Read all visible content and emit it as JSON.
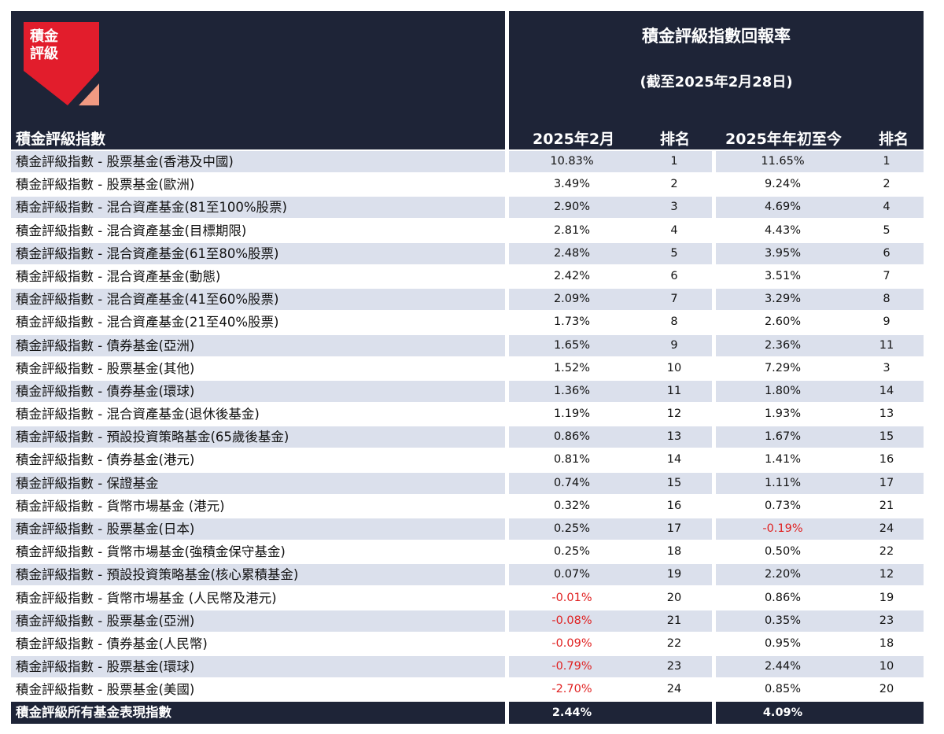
{
  "logo": {
    "line1": "積金",
    "line2": "評級",
    "red": "#e21d2c",
    "salmon": "#f19a82"
  },
  "header": {
    "title": "積金評級指數回報率",
    "subtitle": "(截至2025年2月28日)",
    "col_index": "積金評級指數",
    "col_feb": "2025年2月",
    "col_feb_rank": "排名",
    "col_ytd": "2025年年初至今",
    "col_ytd_rank": "排名"
  },
  "colors": {
    "navy": "#1e2437",
    "shade": "#dbe0ec",
    "negative": "#e02020"
  },
  "rows": [
    {
      "name": "積金評級指數 - 股票基金(香港及中國)",
      "feb": "10.83%",
      "feb_rank": "1",
      "ytd": "11.65%",
      "ytd_rank": "1"
    },
    {
      "name": "積金評級指數 - 股票基金(歐洲)",
      "feb": "3.49%",
      "feb_rank": "2",
      "ytd": "9.24%",
      "ytd_rank": "2"
    },
    {
      "name": "積金評級指數 - 混合資產基金(81至100%股票)",
      "feb": "2.90%",
      "feb_rank": "3",
      "ytd": "4.69%",
      "ytd_rank": "4"
    },
    {
      "name": "積金評級指數 - 混合資產基金(目標期限)",
      "feb": "2.81%",
      "feb_rank": "4",
      "ytd": "4.43%",
      "ytd_rank": "5"
    },
    {
      "name": "積金評級指數 - 混合資產基金(61至80%股票)",
      "feb": "2.48%",
      "feb_rank": "5",
      "ytd": "3.95%",
      "ytd_rank": "6"
    },
    {
      "name": "積金評級指數 - 混合資產基金(動態)",
      "feb": "2.42%",
      "feb_rank": "6",
      "ytd": "3.51%",
      "ytd_rank": "7"
    },
    {
      "name": "積金評級指數 - 混合資產基金(41至60%股票)",
      "feb": "2.09%",
      "feb_rank": "7",
      "ytd": "3.29%",
      "ytd_rank": "8"
    },
    {
      "name": "積金評級指數 - 混合資產基金(21至40%股票)",
      "feb": "1.73%",
      "feb_rank": "8",
      "ytd": "2.60%",
      "ytd_rank": "9"
    },
    {
      "name": "積金評級指數 - 債券基金(亞洲)",
      "feb": "1.65%",
      "feb_rank": "9",
      "ytd": "2.36%",
      "ytd_rank": "11"
    },
    {
      "name": "積金評級指數 - 股票基金(其他)",
      "feb": "1.52%",
      "feb_rank": "10",
      "ytd": "7.29%",
      "ytd_rank": "3"
    },
    {
      "name": "積金評級指數 - 債券基金(環球)",
      "feb": "1.36%",
      "feb_rank": "11",
      "ytd": "1.80%",
      "ytd_rank": "14"
    },
    {
      "name": "積金評級指數 - 混合資產基金(退休後基金)",
      "feb": "1.19%",
      "feb_rank": "12",
      "ytd": "1.93%",
      "ytd_rank": "13"
    },
    {
      "name": "積金評級指數 - 預設投資策略基金(65歲後基金)",
      "feb": "0.86%",
      "feb_rank": "13",
      "ytd": "1.67%",
      "ytd_rank": "15"
    },
    {
      "name": "積金評級指數 - 債券基金(港元)",
      "feb": "0.81%",
      "feb_rank": "14",
      "ytd": "1.41%",
      "ytd_rank": "16"
    },
    {
      "name": "積金評級指數 - 保證基金",
      "feb": "0.74%",
      "feb_rank": "15",
      "ytd": "1.11%",
      "ytd_rank": "17"
    },
    {
      "name": "積金評級指數 - 貨幣市場基金 (港元)",
      "feb": "0.32%",
      "feb_rank": "16",
      "ytd": "0.73%",
      "ytd_rank": "21"
    },
    {
      "name": "積金評級指數 - 股票基金(日本)",
      "feb": "0.25%",
      "feb_rank": "17",
      "ytd": "-0.19%",
      "ytd_rank": "24"
    },
    {
      "name": "積金評級指數 - 貨幣市場基金(強積金保守基金)",
      "feb": "0.25%",
      "feb_rank": "18",
      "ytd": "0.50%",
      "ytd_rank": "22"
    },
    {
      "name": "積金評級指數 - 預設投資策略基金(核心累積基金)",
      "feb": "0.07%",
      "feb_rank": "19",
      "ytd": "2.20%",
      "ytd_rank": "12"
    },
    {
      "name": "積金評級指數 - 貨幣市場基金 (人民幣及港元)",
      "feb": "-0.01%",
      "feb_rank": "20",
      "ytd": "0.86%",
      "ytd_rank": "19"
    },
    {
      "name": "積金評級指數 - 股票基金(亞洲)",
      "feb": "-0.08%",
      "feb_rank": "21",
      "ytd": "0.35%",
      "ytd_rank": "23"
    },
    {
      "name": "積金評級指數 - 債券基金(人民幣)",
      "feb": "-0.09%",
      "feb_rank": "22",
      "ytd": "0.95%",
      "ytd_rank": "18"
    },
    {
      "name": "積金評級指數 - 股票基金(環球)",
      "feb": "-0.79%",
      "feb_rank": "23",
      "ytd": "2.44%",
      "ytd_rank": "10"
    },
    {
      "name": "積金評級指數 - 股票基金(美國)",
      "feb": "-2.70%",
      "feb_rank": "24",
      "ytd": "0.85%",
      "ytd_rank": "20"
    }
  ],
  "footer": {
    "name": "積金評級所有基金表現指數",
    "feb": "2.44%",
    "ytd": "4.09%"
  }
}
